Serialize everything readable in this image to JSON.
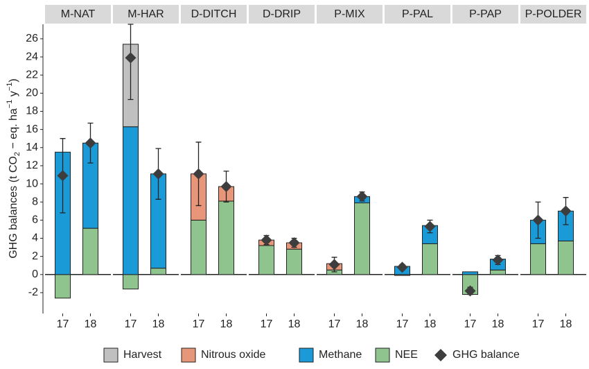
{
  "chart_data": {
    "type": "faceted_stacked_bar",
    "y_label": [
      "GHG balances (t CO",
      "2",
      " − eq. ha",
      "−1",
      " y",
      "−1",
      ")"
    ],
    "facets": [
      "M-NAT",
      "M-HAR",
      "D-DITCH",
      "D-DRIP",
      "P-MIX",
      "P-PAL",
      "P-PAP",
      "P-POLDER"
    ],
    "categories": [
      "17",
      "18"
    ],
    "ylim": [
      -4.3,
      27.6
    ],
    "yticks": [
      -2,
      0,
      2,
      4,
      6,
      8,
      10,
      12,
      14,
      16,
      18,
      20,
      22,
      24,
      26
    ],
    "series": [
      {
        "name": "Harvest",
        "color": "#c0c0c0",
        "values": [
          [
            0,
            0
          ],
          [
            9.1,
            0
          ],
          [
            0,
            0
          ],
          [
            0,
            0
          ],
          [
            0,
            0
          ],
          [
            0,
            0
          ],
          [
            0,
            0
          ],
          [
            0,
            0
          ]
        ]
      },
      {
        "name": "Nitrous oxide",
        "color": "#e8967a",
        "values": [
          [
            0,
            0
          ],
          [
            0,
            0
          ],
          [
            5.1,
            1.6
          ],
          [
            0.6,
            0.7
          ],
          [
            0.7,
            0
          ],
          [
            0,
            0
          ],
          [
            0,
            0
          ],
          [
            0,
            0
          ]
        ]
      },
      {
        "name": "Methane",
        "color": "#1a9ad6",
        "values": [
          [
            13.5,
            9.4
          ],
          [
            16.3,
            10.4
          ],
          [
            0,
            0
          ],
          [
            0,
            0
          ],
          [
            0,
            0.7
          ],
          [
            0.9,
            2.0
          ],
          [
            0.3,
            1.2
          ],
          [
            2.6,
            3.3
          ]
        ]
      },
      {
        "name": "NEE",
        "color": "#8fc48f",
        "values": [
          [
            -2.6,
            5.1
          ],
          [
            -1.6,
            0.7
          ],
          [
            6.0,
            8.1
          ],
          [
            3.2,
            2.8
          ],
          [
            0.5,
            7.9
          ],
          [
            -0.1,
            3.4
          ],
          [
            -2.2,
            0.5
          ],
          [
            3.4,
            3.7
          ]
        ]
      }
    ],
    "balance": {
      "name": "GHG balance",
      "color": "#3d3d3d",
      "values": [
        [
          10.9,
          14.5
        ],
        [
          23.9,
          11.1
        ],
        [
          11.1,
          9.7
        ],
        [
          3.8,
          3.5
        ],
        [
          1.1,
          8.6
        ],
        [
          0.8,
          5.3
        ],
        [
          -1.8,
          1.6
        ],
        [
          6.0,
          7.0
        ]
      ],
      "errors": [
        [
          4.1,
          2.2
        ],
        [
          4.6,
          2.8
        ],
        [
          3.5,
          1.7
        ],
        [
          0.5,
          0.5
        ],
        [
          0.8,
          0.5
        ],
        [
          0.3,
          0.7
        ],
        [
          0.4,
          0.5
        ],
        [
          2.0,
          1.5
        ]
      ]
    }
  }
}
